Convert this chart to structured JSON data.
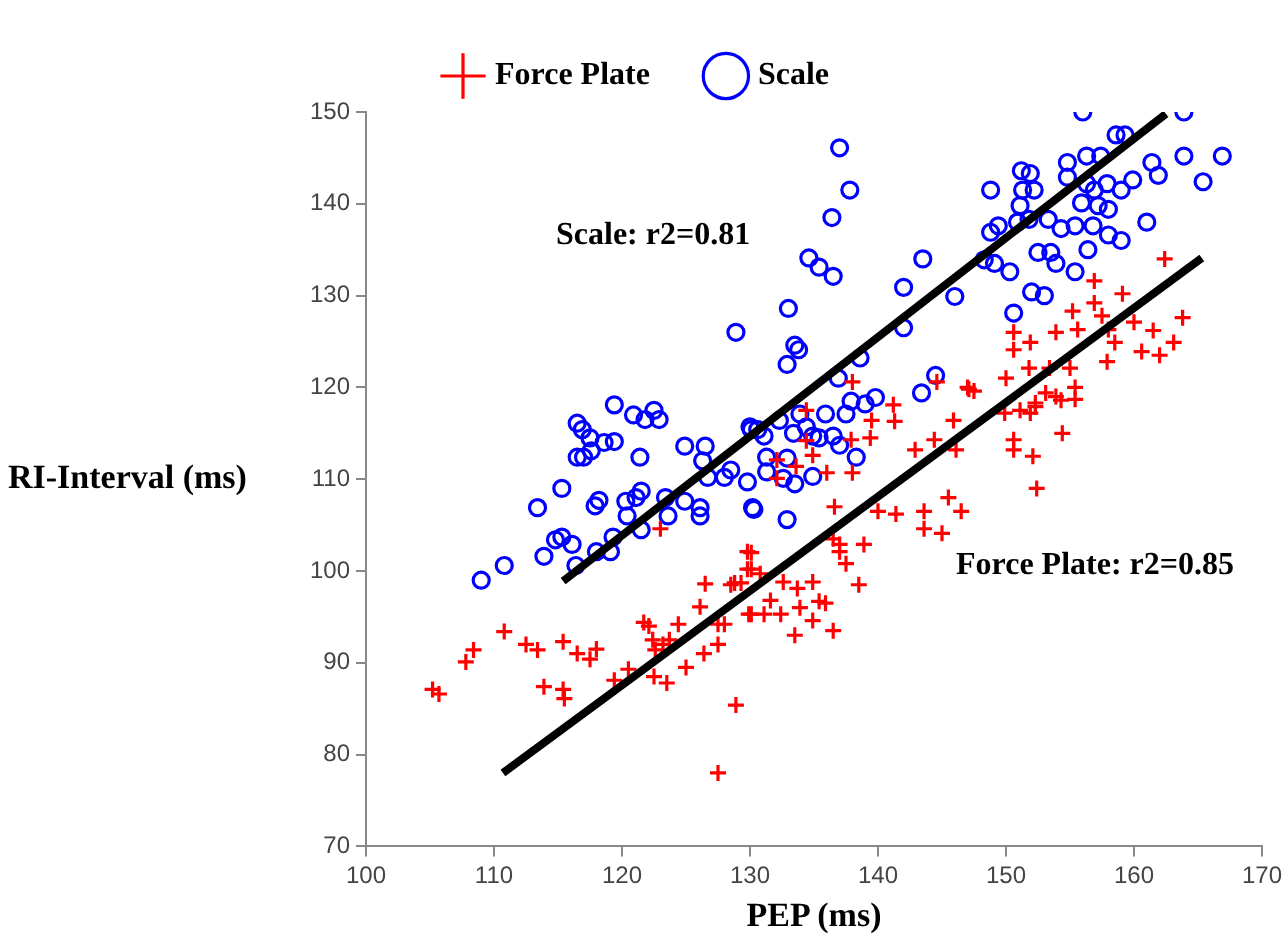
{
  "chart_data": {
    "type": "scatter",
    "xlabel": "PEP (ms)",
    "ylabel": "RI-Interval (ms)",
    "xlim": [
      100,
      170
    ],
    "ylim": [
      70,
      150
    ],
    "xticks": [
      100,
      110,
      120,
      130,
      140,
      150,
      160,
      170
    ],
    "yticks": [
      70,
      80,
      90,
      100,
      110,
      120,
      130,
      140,
      150
    ],
    "grid": false,
    "legend": "top",
    "annotations": [
      "Scale: r2=0.81",
      "Force Plate: r2=0.85"
    ],
    "series": [
      {
        "name": "Force Plate",
        "color": "#ff0000",
        "marker": "cross",
        "x": [
          105.2,
          105.7,
          107.8,
          108.4,
          110.8,
          112.5,
          113.4,
          113.9,
          115.4,
          115.4,
          115.5,
          116.5,
          117.5,
          118.0,
          119.4,
          120.5,
          121.7,
          122.1,
          122.4,
          122.6,
          123.2,
          123.7,
          122.5,
          123.5,
          124.4,
          125.0,
          126.1,
          126.5,
          126.4,
          127.5,
          127.5,
          128.0,
          128.5,
          128.9,
          127.5,
          129.8,
          129.8,
          129.9,
          123.0,
          130.1,
          130.1,
          130.8,
          128.8,
          129.3,
          130.1,
          131.1,
          131.6,
          132.4,
          132.6,
          133.7,
          133.9,
          133.5,
          134.9,
          134.9,
          135.4,
          135.9,
          136.5,
          136.5,
          137.0,
          137.5,
          136.6,
          137.0,
          138.9,
          138.5,
          140.0,
          141.4,
          143.6,
          143.6,
          145.0,
          145.5,
          146.5,
          132.1,
          133.6,
          134.4,
          136.0,
          138.0,
          139.5,
          141.2,
          138.0,
          142.9,
          144.4,
          146.1,
          145.9,
          147.1,
          149.9,
          150.6,
          150.6,
          152.1,
          152.4,
          154.4,
          151.9,
          152.3,
          153.9,
          155.4,
          144.6,
          147.0,
          147.5,
          141.3,
          139.4,
          137.9,
          134.4,
          134.9,
          132.1,
          150.0,
          151.1,
          152.3,
          153.1,
          150.6,
          150.6,
          151.9,
          153.9,
          151.8,
          153.4,
          155.0,
          155.4,
          154.3,
          155.2,
          156.9,
          156.9,
          157.5,
          159.1,
          158.0,
          155.6,
          158.5,
          157.9,
          160.0,
          160.6,
          161.5,
          162.0,
          163.1,
          163.8,
          162.4
        ],
        "values": [
          87.1,
          86.6,
          90.1,
          91.4,
          93.4,
          92.0,
          91.4,
          87.4,
          92.3,
          87.1,
          86.1,
          91.0,
          90.4,
          91.5,
          88.1,
          89.3,
          94.4,
          94.0,
          92.5,
          91.4,
          92.0,
          92.5,
          88.5,
          87.8,
          94.2,
          89.5,
          96.1,
          98.6,
          91.0,
          92.0,
          94.2,
          94.2,
          98.5,
          85.4,
          78.0,
          102.1,
          100.2,
          95.3,
          104.6,
          102.0,
          100.2,
          99.7,
          98.7,
          98.7,
          95.3,
          95.3,
          96.8,
          95.3,
          98.8,
          98.1,
          96.0,
          93.0,
          94.6,
          98.8,
          96.7,
          96.5,
          93.5,
          103.5,
          102.1,
          100.8,
          107.0,
          102.9,
          102.9,
          98.5,
          106.5,
          106.2,
          106.5,
          104.6,
          104.1,
          108.0,
          106.5,
          112.1,
          111.4,
          114.2,
          110.7,
          110.7,
          116.4,
          118.1,
          120.6,
          113.2,
          114.3,
          113.2,
          116.4,
          119.8,
          117.2,
          114.3,
          113.2,
          112.5,
          109.0,
          115.0,
          117.2,
          118.3,
          119.0,
          118.7,
          120.6,
          120.0,
          119.6,
          116.3,
          114.5,
          114.3,
          117.5,
          112.6,
          110.1,
          121.0,
          117.5,
          117.9,
          119.4,
          126.0,
          124.1,
          124.9,
          126.0,
          122.1,
          122.1,
          122.1,
          120.0,
          118.6,
          128.3,
          131.6,
          129.2,
          127.8,
          130.2,
          126.3,
          126.3,
          124.9,
          122.8,
          127.1,
          123.9,
          126.2,
          123.5,
          124.9,
          127.6,
          134.0
        ]
      },
      {
        "name": "Scale",
        "color": "#0000ff",
        "marker": "circle",
        "x": [
          109.0,
          110.8,
          113.9,
          113.4,
          115.3,
          114.8,
          115.3,
          116.1,
          116.5,
          116.9,
          116.5,
          117.0,
          117.5,
          117.6,
          118.6,
          119.4,
          119.4,
          117.9,
          118.2,
          118.0,
          119.1,
          116.4,
          119.3,
          120.9,
          121.8,
          122.5,
          122.9,
          121.4,
          120.3,
          121.1,
          121.5,
          120.4,
          121.5,
          123.4,
          123.6,
          124.9,
          124.9,
          126.5,
          126.1,
          126.1,
          126.3,
          126.7,
          128.0,
          128.5,
          128.9,
          129.8,
          130.2,
          130.0,
          137.0,
          137.8,
          136.4,
          134.6,
          135.4,
          136.5,
          133.0,
          133.5,
          133.8,
          132.9,
          136.9,
          138.6,
          142.0,
          143.5,
          146.0,
          142.0,
          143.4,
          144.5,
          148.3,
          149.1,
          150.3,
          148.8,
          148.8,
          149.4,
          150.9,
          151.2,
          151.9,
          151.3,
          152.2,
          151.1,
          151.8,
          152.5,
          153.5,
          153.9,
          152.0,
          153.0,
          150.6,
          154.8,
          156.3,
          157.4,
          154.8,
          156.3,
          156.9,
          157.9,
          155.9,
          157.2,
          158.0,
          153.3,
          154.3,
          155.4,
          156.8,
          155.4,
          156.4,
          158.0,
          159.0,
          156.0,
          158.6,
          159.3,
          159.0,
          159.9,
          161.0,
          161.4,
          161.9,
          163.9,
          163.9,
          165.4,
          166.9,
          130.1,
          130.6,
          131.1,
          131.3,
          130.3,
          131.3,
          132.3,
          132.9,
          132.6,
          133.4,
          133.9,
          134.4,
          134.9,
          135.4,
          132.9,
          133.5,
          134.9,
          135.9,
          136.5,
          137.0,
          137.5,
          138.3,
          139.0,
          139.8,
          137.9
        ],
        "values": [
          99.0,
          100.6,
          101.6,
          106.9,
          109.0,
          103.4,
          103.7,
          102.9,
          116.1,
          115.4,
          112.4,
          112.4,
          114.5,
          113.1,
          114.0,
          114.1,
          118.1,
          107.1,
          107.7,
          102.1,
          102.1,
          100.6,
          103.7,
          117.0,
          116.5,
          117.5,
          116.5,
          112.4,
          107.6,
          108.0,
          108.7,
          106.0,
          104.5,
          108.0,
          106.0,
          107.6,
          113.6,
          113.6,
          106.9,
          106.0,
          112.0,
          110.2,
          110.2,
          111.0,
          126.0,
          109.7,
          106.9,
          115.7,
          146.1,
          141.5,
          138.5,
          134.1,
          133.1,
          132.1,
          128.6,
          124.6,
          124.1,
          122.5,
          121.0,
          123.2,
          130.9,
          134.0,
          129.9,
          126.5,
          119.4,
          121.3,
          133.9,
          133.5,
          132.6,
          141.5,
          136.9,
          137.6,
          138.0,
          143.6,
          143.3,
          141.5,
          141.5,
          139.8,
          138.3,
          134.7,
          134.7,
          133.5,
          130.4,
          130.0,
          128.1,
          144.5,
          145.2,
          145.2,
          142.9,
          142.2,
          141.5,
          142.2,
          140.1,
          139.8,
          139.4,
          138.3,
          137.3,
          137.6,
          137.6,
          132.6,
          135.0,
          136.6,
          136.0,
          150.0,
          147.5,
          147.5,
          141.5,
          142.6,
          138.0,
          144.5,
          143.1,
          150.0,
          145.2,
          142.4,
          145.2,
          115.4,
          115.4,
          114.7,
          112.4,
          106.7,
          110.8,
          116.4,
          112.3,
          110.1,
          115.0,
          117.1,
          115.7,
          114.7,
          114.5,
          105.6,
          109.5,
          110.3,
          117.1,
          114.7,
          113.7,
          117.1,
          112.4,
          118.2,
          118.9,
          118.5
        ]
      },
      {
        "type": "line",
        "color": "#000000",
        "x": [
          115.4,
          162.5
        ],
        "values": [
          98.9,
          149.8
        ]
      },
      {
        "type": "line",
        "color": "#000000",
        "x": [
          110.7,
          165.3
        ],
        "values": [
          78.0,
          134.1
        ]
      }
    ]
  }
}
